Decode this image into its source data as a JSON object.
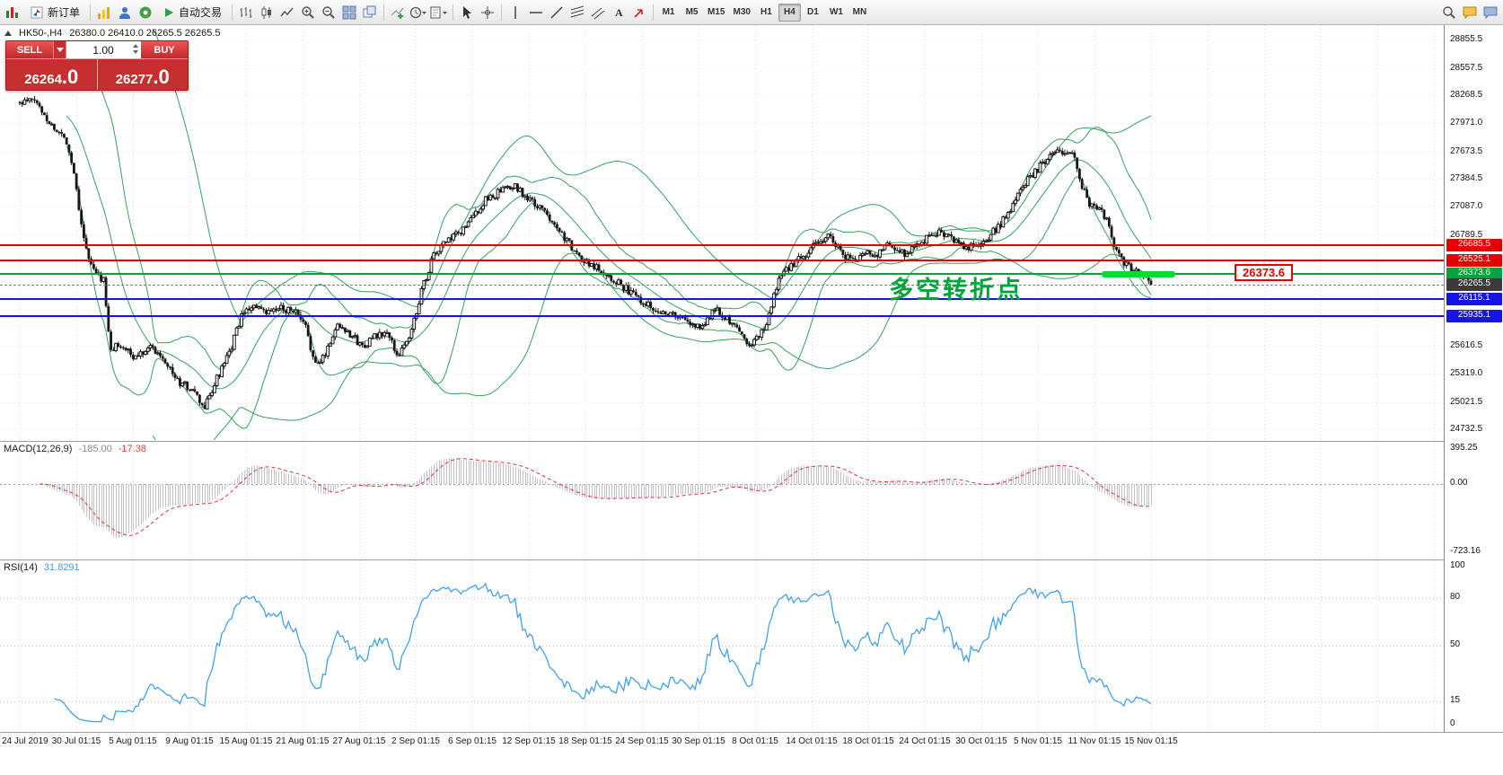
{
  "toolbar": {
    "new_order_label": "新订单",
    "autotrading_label": "自动交易",
    "timeframes": [
      "M1",
      "M5",
      "M15",
      "M30",
      "H1",
      "H4",
      "D1",
      "W1",
      "MN"
    ],
    "active_timeframe": "H4"
  },
  "order_panel": {
    "sell_label": "SELL",
    "buy_label": "BUY",
    "volume": "1.00",
    "sell_price_main": "26264",
    "sell_price_frac": ".0",
    "buy_price_main": "26277",
    "buy_price_frac": ".0"
  },
  "chart_header": {
    "symbol_period": "HK50-,H4",
    "ohlc": "26380.0 26410.0 26265.5 26265.5"
  },
  "chart_data": {
    "type": "candlestick",
    "symbol": "HK50-",
    "period": "H4",
    "ylim": [
      24620,
      29010
    ],
    "candle_count": 460,
    "seed": 11,
    "noise": 42,
    "band_color": "#35a05a",
    "bollinger": [
      {
        "period": 20,
        "deviation": 2,
        "middle": true
      },
      {
        "period": 55,
        "deviation": 2,
        "middle": false
      }
    ],
    "price_labels": [
      "28855.5",
      "28557.5",
      "28268.5",
      "27971.0",
      "27673.5",
      "27384.5",
      "27087.0",
      "26789.5",
      "25616.5",
      "25319.0",
      "25021.5",
      "24732.5"
    ],
    "price_path": [
      [
        0.0,
        28180
      ],
      [
        0.013,
        28220
      ],
      [
        0.028,
        27950
      ],
      [
        0.041,
        27800
      ],
      [
        0.048,
        27450
      ],
      [
        0.054,
        26950
      ],
      [
        0.06,
        26550
      ],
      [
        0.067,
        26380
      ],
      [
        0.074,
        26320
      ],
      [
        0.08,
        25550
      ],
      [
        0.088,
        25650
      ],
      [
        0.101,
        25480
      ],
      [
        0.114,
        25620
      ],
      [
        0.127,
        25500
      ],
      [
        0.14,
        25230
      ],
      [
        0.152,
        25160
      ],
      [
        0.163,
        24950
      ],
      [
        0.174,
        25260
      ],
      [
        0.185,
        25520
      ],
      [
        0.195,
        25900
      ],
      [
        0.205,
        26050
      ],
      [
        0.217,
        25950
      ],
      [
        0.229,
        26010
      ],
      [
        0.242,
        26000
      ],
      [
        0.253,
        25800
      ],
      [
        0.262,
        25380
      ],
      [
        0.271,
        25560
      ],
      [
        0.281,
        25850
      ],
      [
        0.291,
        25760
      ],
      [
        0.302,
        25610
      ],
      [
        0.313,
        25700
      ],
      [
        0.324,
        25760
      ],
      [
        0.334,
        25520
      ],
      [
        0.345,
        25710
      ],
      [
        0.354,
        26150
      ],
      [
        0.365,
        26550
      ],
      [
        0.375,
        26700
      ],
      [
        0.388,
        26800
      ],
      [
        0.399,
        26950
      ],
      [
        0.411,
        27150
      ],
      [
        0.425,
        27250
      ],
      [
        0.439,
        27300
      ],
      [
        0.45,
        27160
      ],
      [
        0.461,
        27060
      ],
      [
        0.471,
        26950
      ],
      [
        0.482,
        26760
      ],
      [
        0.493,
        26560
      ],
      [
        0.505,
        26480
      ],
      [
        0.516,
        26400
      ],
      [
        0.527,
        26310
      ],
      [
        0.539,
        26190
      ],
      [
        0.55,
        26100
      ],
      [
        0.563,
        26000
      ],
      [
        0.576,
        25950
      ],
      [
        0.589,
        25880
      ],
      [
        0.599,
        25810
      ],
      [
        0.608,
        25900
      ],
      [
        0.616,
        26020
      ],
      [
        0.625,
        25900
      ],
      [
        0.634,
        25800
      ],
      [
        0.645,
        25630
      ],
      [
        0.654,
        25710
      ],
      [
        0.663,
        25950
      ],
      [
        0.671,
        26350
      ],
      [
        0.683,
        26480
      ],
      [
        0.694,
        26580
      ],
      [
        0.706,
        26700
      ],
      [
        0.714,
        26800
      ],
      [
        0.723,
        26660
      ],
      [
        0.731,
        26560
      ],
      [
        0.74,
        26500
      ],
      [
        0.748,
        26620
      ],
      [
        0.757,
        26560
      ],
      [
        0.765,
        26700
      ],
      [
        0.774,
        26640
      ],
      [
        0.782,
        26600
      ],
      [
        0.791,
        26680
      ],
      [
        0.801,
        26750
      ],
      [
        0.812,
        26820
      ],
      [
        0.822,
        26780
      ],
      [
        0.83,
        26700
      ],
      [
        0.839,
        26660
      ],
      [
        0.849,
        26720
      ],
      [
        0.859,
        26800
      ],
      [
        0.87,
        26950
      ],
      [
        0.88,
        27150
      ],
      [
        0.89,
        27350
      ],
      [
        0.901,
        27500
      ],
      [
        0.911,
        27620
      ],
      [
        0.921,
        27680
      ],
      [
        0.93,
        27700
      ],
      [
        0.937,
        27350
      ],
      [
        0.945,
        27120
      ],
      [
        0.954,
        27050
      ],
      [
        0.961,
        26950
      ],
      [
        0.967,
        26650
      ],
      [
        0.976,
        26480
      ],
      [
        0.985,
        26420
      ],
      [
        0.993,
        26350
      ],
      [
        1.0,
        26265
      ]
    ],
    "hlines": [
      {
        "price": 26685.5,
        "label": "26685.5",
        "color": "#e60000"
      },
      {
        "price": 26525.1,
        "label": "26525.1",
        "color": "#e60000"
      },
      {
        "price": 26373.6,
        "label": "26373.6",
        "color": "#00a33c"
      },
      {
        "price": 26115.1,
        "label": "26115.1",
        "color": "#1414e6"
      },
      {
        "price": 25935.1,
        "label": "25935.1",
        "color": "#1414e6"
      }
    ],
    "current_price": {
      "price": 26265.5,
      "label": "26265.5",
      "tag_bg": "#3a3a3a"
    },
    "annotation": {
      "text": "多空转折点",
      "color": "#00a33c",
      "price": 26400
    },
    "highlight": {
      "price": 26373.6,
      "color": "#00dc3c"
    },
    "callout": {
      "text": "26373.6",
      "color": "#e60000"
    },
    "macd": {
      "name": "MACD(12,26,9)",
      "value_main": "-185.00",
      "value_signal": "-17.38",
      "axis_labels": [
        "395.25",
        "0.00",
        "-723.16"
      ],
      "ylim": [
        -723.16,
        395.25
      ],
      "bar_color": "#c2c2c2",
      "signal_color": "#e03030"
    },
    "rsi": {
      "name": "RSI(14)",
      "value": "31.8291",
      "axis_labels": [
        "100",
        "80",
        "50",
        "15",
        "0"
      ],
      "levels": [
        80,
        50,
        15
      ],
      "line_color": "#42a0ea"
    },
    "time_labels": [
      "24 Jul 2019",
      "30 Jul 01:15",
      "5 Aug 01:15",
      "9 Aug 01:15",
      "15 Aug 01:15",
      "21 Aug 01:15",
      "27 Aug 01:15",
      "2 Sep 01:15",
      "6 Sep 01:15",
      "12 Sep 01:15",
      "18 Sep 01:15",
      "24 Sep 01:15",
      "30 Sep 01:15",
      "8 Oct 01:15",
      "14 Oct 01:15",
      "18 Oct 01:15",
      "24 Oct 01:15",
      "30 Oct 01:15",
      "5 Nov 01:15",
      "11 Nov 01:15",
      "15 Nov 01:15"
    ]
  }
}
